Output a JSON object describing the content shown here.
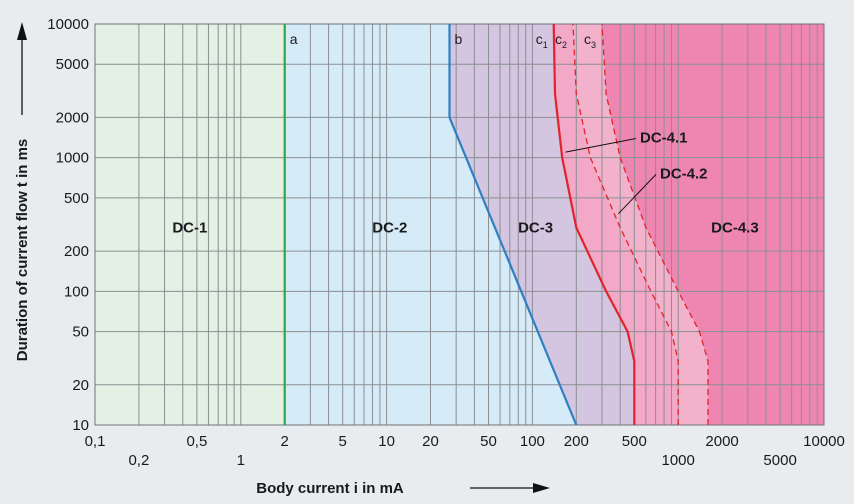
{
  "chart_data": {
    "type": "area",
    "title": "",
    "xlabel": "Body current  i   in mA",
    "ylabel": "Duration of current flow t in ms",
    "x_scale": "log",
    "y_scale": "log",
    "xlim": [
      0.1,
      10000
    ],
    "ylim": [
      10,
      10000
    ],
    "grid": true,
    "x_ticks_upper": [
      "0,1",
      "0,5",
      "2",
      "5",
      "10",
      "20",
      "50",
      "100",
      "200",
      "500",
      "2000",
      "10000"
    ],
    "x_ticks_lower": [
      "0,2",
      "1",
      "1000",
      "5000"
    ],
    "y_ticks": [
      "10",
      "20",
      "50",
      "100",
      "200",
      "500",
      "1000",
      "2000",
      "5000",
      "10000"
    ],
    "zones": [
      {
        "name": "DC-1",
        "color": "#e3f0e4"
      },
      {
        "name": "DC-2",
        "color": "#d6ebf8"
      },
      {
        "name": "DC-3",
        "color": "#d4c6e0"
      },
      {
        "name": "DC-4.1",
        "color": "#f2a8c6"
      },
      {
        "name": "DC-4.2",
        "color": "#f3b2cc"
      },
      {
        "name": "DC-4.3",
        "color": "#ef86b1"
      }
    ],
    "boundaries": [
      {
        "name": "a",
        "style": "solid",
        "color": "#2aa84a",
        "x": [
          2,
          2
        ],
        "y": [
          10,
          10000
        ]
      },
      {
        "name": "b",
        "style": "solid",
        "color": "#2f7fc4",
        "x": [
          200,
          27,
          27
        ],
        "y": [
          10,
          2000,
          10000
        ]
      },
      {
        "name": "c1",
        "style": "solid",
        "color": "#e2232b",
        "x": [
          500,
          500,
          450,
          320,
          200,
          160,
          143,
          140
        ],
        "y": [
          10,
          30,
          50,
          100,
          300,
          1000,
          3000,
          10000
        ]
      },
      {
        "name": "c2",
        "style": "dashed",
        "color": "#e2232b",
        "x": [
          1000,
          1000,
          900,
          650,
          400,
          250,
          200,
          190
        ],
        "y": [
          10,
          30,
          50,
          100,
          300,
          1000,
          3000,
          10000
        ]
      },
      {
        "name": "c3",
        "style": "dashed",
        "color": "#e2232b",
        "x": [
          1600,
          1600,
          1400,
          1000,
          600,
          400,
          320,
          300
        ],
        "y": [
          10,
          30,
          50,
          100,
          300,
          1000,
          3000,
          10000
        ]
      }
    ],
    "annotations": [
      {
        "text": "DC-4.1",
        "points_to": "c1"
      },
      {
        "text": "DC-4.2",
        "points_to": "c2"
      }
    ]
  }
}
